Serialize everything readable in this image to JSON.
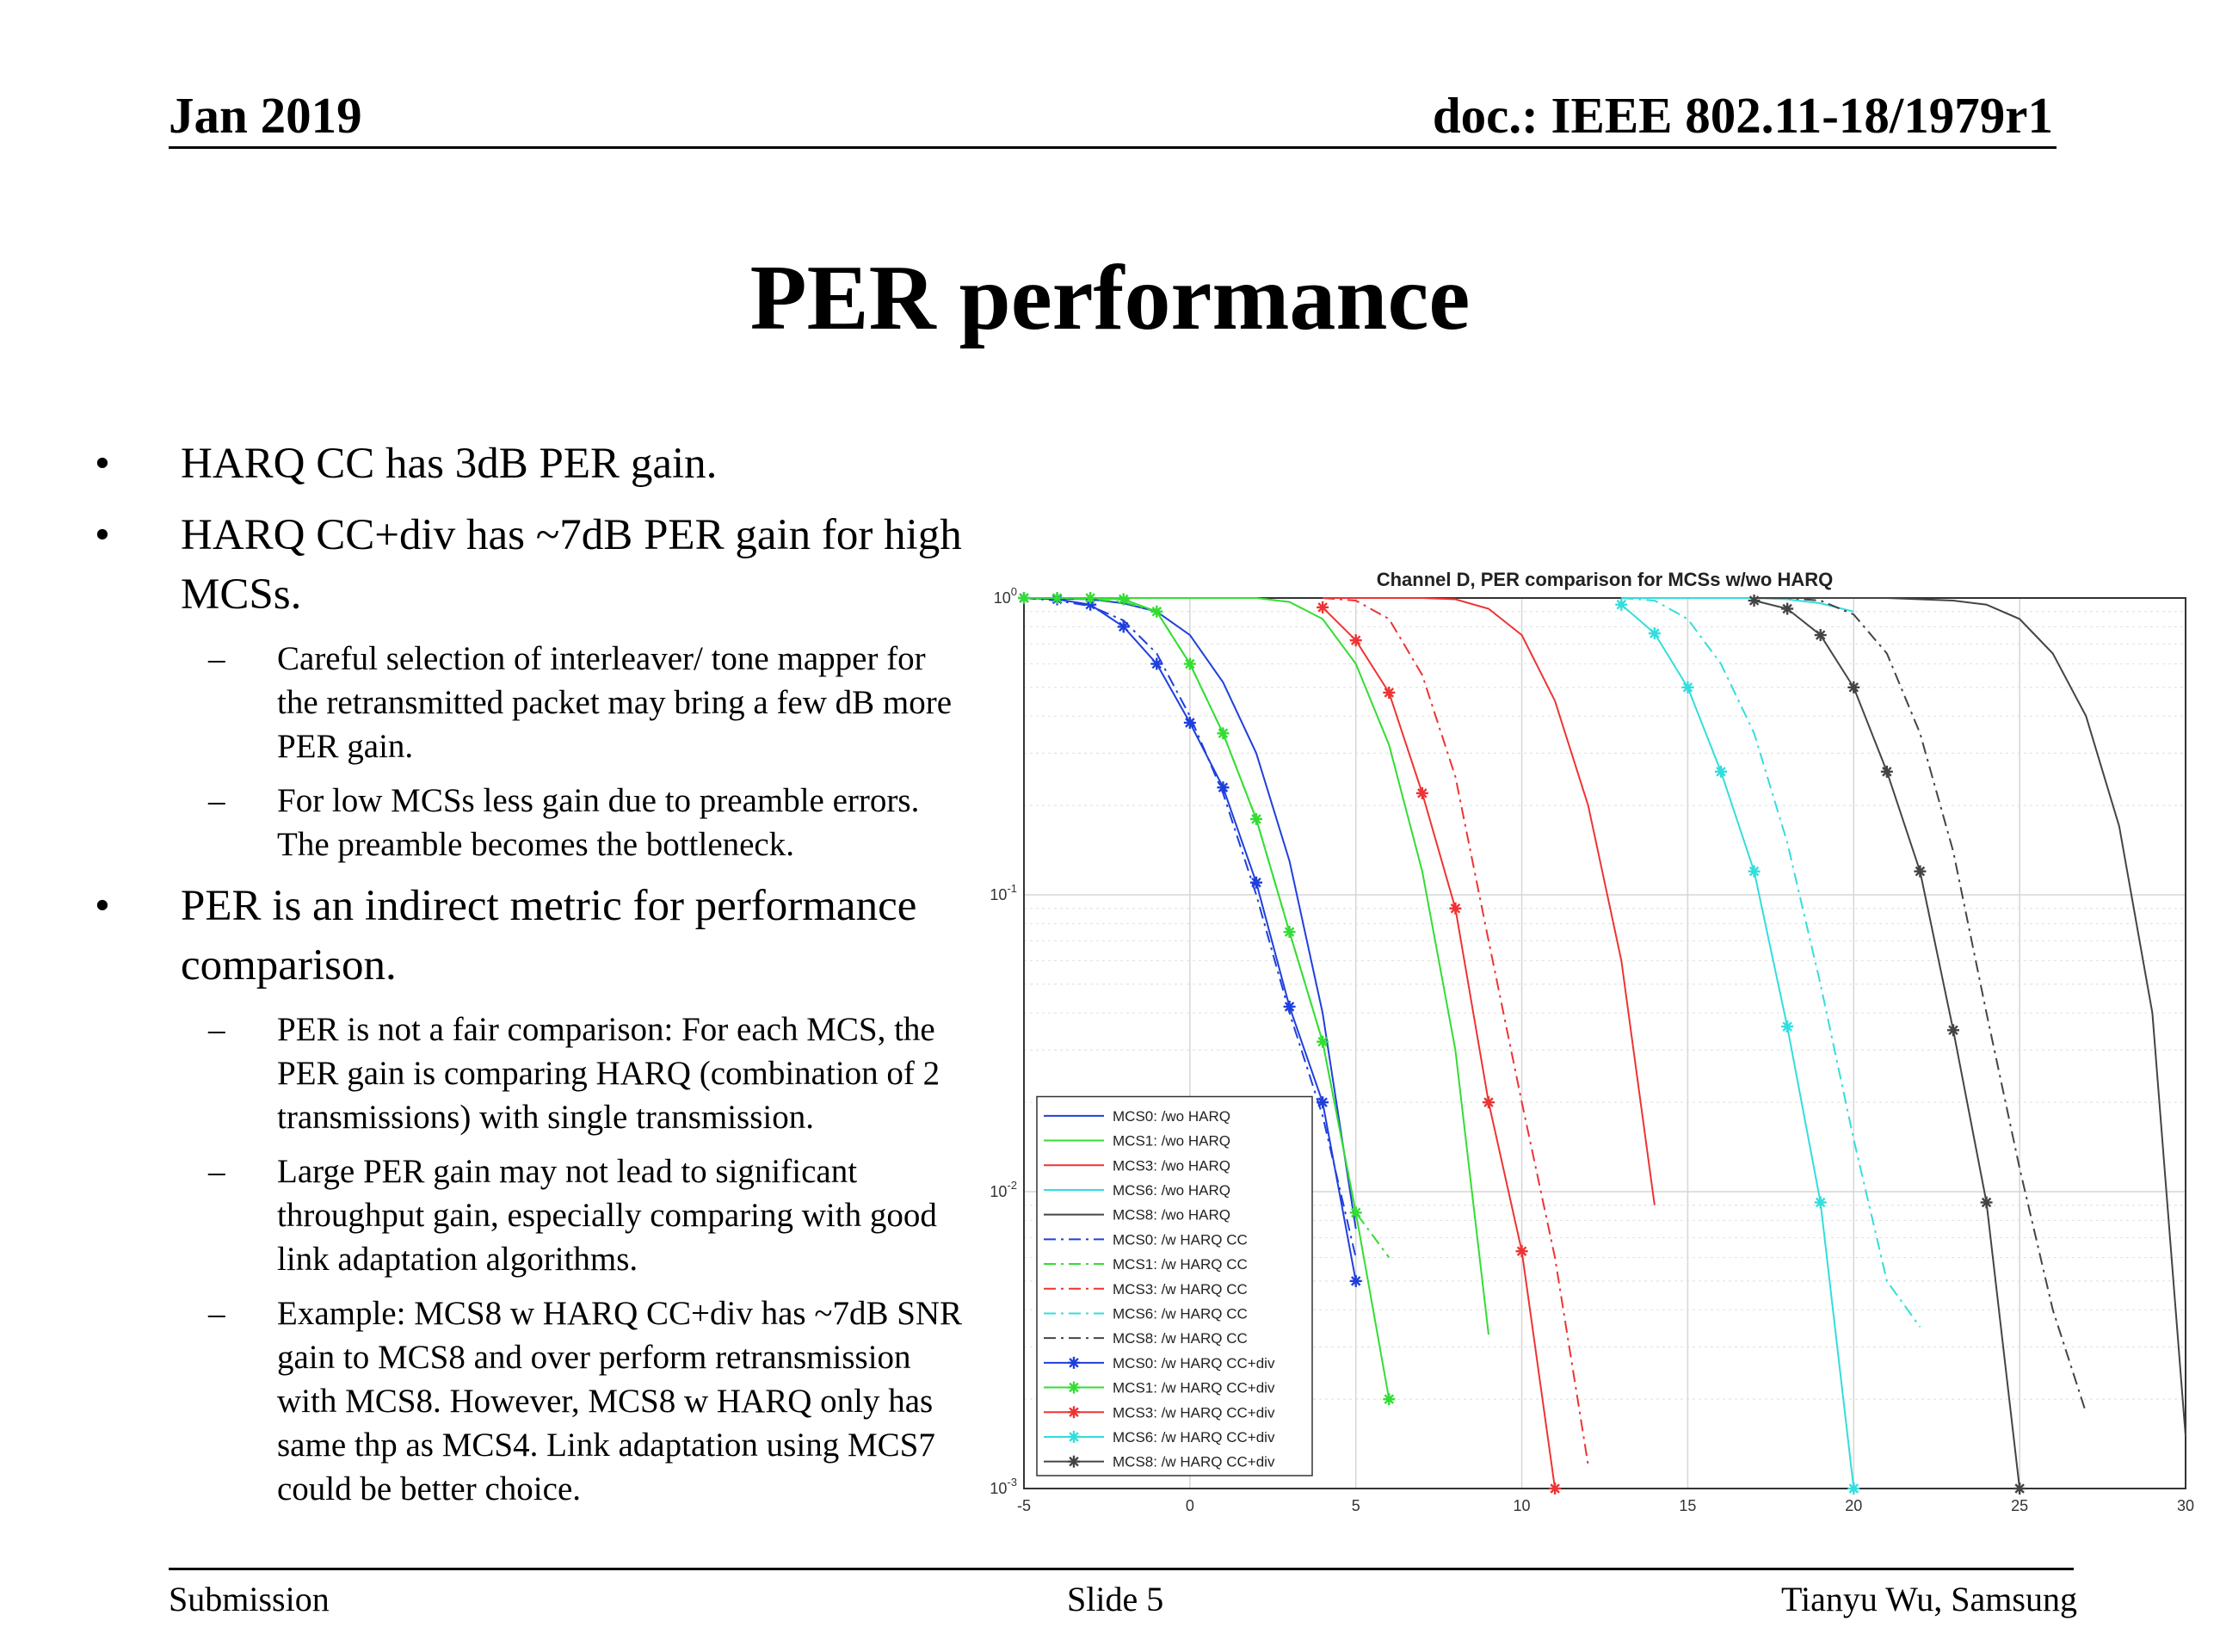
{
  "header": {
    "date": "Jan 2019",
    "doc": "doc.: IEEE 802.11-18/1979r1"
  },
  "title": "PER performance",
  "bullets": [
    {
      "level": 1,
      "text": "HARQ CC has 3dB PER gain."
    },
    {
      "level": 1,
      "text": "HARQ CC+div has ~7dB PER gain for high MCSs."
    },
    {
      "level": 2,
      "text": "Careful selection of interleaver/ tone mapper for the retransmitted packet may bring a few dB more PER gain."
    },
    {
      "level": 2,
      "text": "For low MCSs less gain due to preamble errors. The preamble becomes the bottleneck."
    },
    {
      "level": 1,
      "text": "PER is an indirect metric for performance comparison."
    },
    {
      "level": 2,
      "text": "PER is not a fair comparison: For each MCS, the PER gain is comparing HARQ (combination of 2 transmissions) with single transmission."
    },
    {
      "level": 2,
      "text": "Large PER gain may not lead to significant throughput gain, especially comparing with good link adaptation algorithms."
    },
    {
      "level": 2,
      "text": "Example: MCS8 w HARQ CC+div has ~7dB SNR gain to MCS8 and over perform retransmission with MCS8. However, MCS8 w HARQ only has same thp as MCS4. Link adaptation using MCS7 could be better choice."
    }
  ],
  "bullet_symbols": {
    "level1": "•",
    "level2": "–"
  },
  "footer": {
    "left": "Submission",
    "center": "Slide 5",
    "right": "Tianyu Wu, Samsung"
  },
  "chart_data": {
    "type": "line",
    "title": "Channel D, PER comparison for MCSs w/wo HARQ",
    "xlabel": "",
    "ylabel": "",
    "xlim": [
      -5,
      30
    ],
    "ylim": [
      0.001,
      1
    ],
    "yscale": "log",
    "xticks": [
      -5,
      0,
      5,
      10,
      15,
      20,
      25,
      30
    ],
    "ytick_labels": [
      {
        "value": 1,
        "base": "10",
        "exp": "0"
      },
      {
        "value": 0.1,
        "base": "10",
        "exp": "-1"
      },
      {
        "value": 0.01,
        "base": "10",
        "exp": "-2"
      },
      {
        "value": 0.001,
        "base": "10",
        "exp": "-3"
      }
    ],
    "grid": true,
    "legend_position": "bottom-left",
    "series": [
      {
        "name": "MCS0: /wo HARQ",
        "color": "#1f3fdd",
        "style": "solid",
        "marker": "none",
        "x": [
          -5,
          -3,
          -2,
          -1,
          0,
          1,
          2,
          3,
          4,
          5
        ],
        "y": [
          1,
          0.99,
          0.96,
          0.9,
          0.75,
          0.52,
          0.3,
          0.13,
          0.04,
          0.0075
        ]
      },
      {
        "name": "MCS1: /wo HARQ",
        "color": "#33dd33",
        "style": "solid",
        "marker": "none",
        "x": [
          -5,
          -1,
          0,
          1,
          2,
          3,
          4,
          5,
          6,
          7,
          8,
          9
        ],
        "y": [
          1,
          1,
          1,
          1,
          1,
          0.97,
          0.85,
          0.6,
          0.32,
          0.12,
          0.03,
          0.0033
        ]
      },
      {
        "name": "MCS3: /wo HARQ",
        "color": "#ee3333",
        "style": "solid",
        "marker": "none",
        "x": [
          4,
          7,
          8,
          9,
          10,
          11,
          12,
          13,
          14
        ],
        "y": [
          1,
          1,
          0.99,
          0.92,
          0.75,
          0.45,
          0.2,
          0.06,
          0.009
        ]
      },
      {
        "name": "MCS6: /wo HARQ",
        "color": "#33dddd",
        "style": "solid",
        "marker": "none",
        "x": [
          13,
          17,
          18,
          19,
          20
        ],
        "y": [
          1,
          1,
          0.99,
          0.96,
          0.9
        ]
      },
      {
        "name": "MCS8: /wo HARQ",
        "color": "#444444",
        "style": "solid",
        "marker": "none",
        "x": [
          17,
          21,
          22,
          23,
          24,
          25,
          26,
          27,
          28,
          29,
          30
        ],
        "y": [
          1,
          1,
          0.99,
          0.98,
          0.95,
          0.85,
          0.65,
          0.4,
          0.17,
          0.04,
          0.0015
        ]
      },
      {
        "name": "MCS0: /w HARQ CC",
        "color": "#1f3fdd",
        "style": "dashdot",
        "marker": "none",
        "x": [
          -5,
          -4,
          -3,
          -2,
          -1,
          0,
          1,
          2,
          3,
          4,
          5
        ],
        "y": [
          1,
          0.98,
          0.94,
          0.84,
          0.65,
          0.4,
          0.22,
          0.1,
          0.04,
          0.018,
          0.006
        ]
      },
      {
        "name": "MCS1: /w HARQ CC",
        "color": "#33dd33",
        "style": "dashdot",
        "marker": "none",
        "x": [
          -5,
          -4,
          -3,
          -2,
          -1,
          0,
          1,
          2,
          3,
          4,
          5,
          6
        ],
        "y": [
          1,
          1,
          0.99,
          0.97,
          0.9,
          0.6,
          0.35,
          0.18,
          0.075,
          0.032,
          0.0085,
          0.006
        ]
      },
      {
        "name": "MCS3: /w HARQ CC",
        "color": "#ee3333",
        "style": "dashdot",
        "marker": "none",
        "x": [
          4,
          5,
          6,
          7,
          8,
          9,
          10,
          11,
          12
        ],
        "y": [
          1,
          0.98,
          0.85,
          0.55,
          0.25,
          0.07,
          0.02,
          0.006,
          0.0012
        ]
      },
      {
        "name": "MCS6: /w HARQ CC",
        "color": "#33dddd",
        "style": "dashdot",
        "marker": "none",
        "x": [
          13,
          14,
          15,
          16,
          17,
          18,
          19,
          20,
          21,
          22
        ],
        "y": [
          1,
          0.98,
          0.85,
          0.6,
          0.35,
          0.15,
          0.05,
          0.015,
          0.005,
          0.0035
        ]
      },
      {
        "name": "MCS8: /w HARQ CC",
        "color": "#444444",
        "style": "dashdot",
        "marker": "none",
        "x": [
          17,
          18,
          19,
          20,
          21,
          22,
          23,
          24,
          25,
          26,
          27
        ],
        "y": [
          1,
          1,
          0.98,
          0.88,
          0.65,
          0.35,
          0.14,
          0.04,
          0.012,
          0.004,
          0.0018
        ]
      },
      {
        "name": "MCS0: /w HARQ CC+div",
        "color": "#1f3fdd",
        "style": "solid",
        "marker": "*",
        "x": [
          -5,
          -4,
          -3,
          -2,
          -1,
          0,
          1,
          2,
          3,
          4,
          5
        ],
        "y": [
          1,
          0.99,
          0.95,
          0.8,
          0.6,
          0.38,
          0.23,
          0.11,
          0.042,
          0.02,
          0.005
        ]
      },
      {
        "name": "MCS1: /w HARQ CC+div",
        "color": "#33dd33",
        "style": "solid",
        "marker": "*",
        "x": [
          -5,
          -4,
          -3,
          -2,
          -1,
          0,
          1,
          2,
          3,
          4,
          5,
          6
        ],
        "y": [
          1,
          1,
          1,
          0.99,
          0.9,
          0.6,
          0.35,
          0.18,
          0.075,
          0.032,
          0.0085,
          0.002
        ]
      },
      {
        "name": "MCS3: /w HARQ CC+div",
        "color": "#ee3333",
        "style": "solid",
        "marker": "*",
        "x": [
          4,
          5,
          6,
          7,
          8,
          9,
          10,
          11
        ],
        "y": [
          0.93,
          0.72,
          0.48,
          0.22,
          0.09,
          0.02,
          0.0063,
          0.001
        ]
      },
      {
        "name": "MCS6: /w HARQ CC+div",
        "color": "#33dddd",
        "style": "solid",
        "marker": "*",
        "x": [
          13,
          14,
          15,
          16,
          17,
          18,
          19,
          20
        ],
        "y": [
          0.95,
          0.76,
          0.5,
          0.26,
          0.12,
          0.036,
          0.0092,
          0.001
        ]
      },
      {
        "name": "MCS8: /w HARQ CC+div",
        "color": "#444444",
        "style": "solid",
        "marker": "*",
        "x": [
          17,
          18,
          19,
          20,
          21,
          22,
          23,
          24,
          25
        ],
        "y": [
          0.98,
          0.92,
          0.75,
          0.5,
          0.26,
          0.12,
          0.035,
          0.0092,
          0.001
        ]
      }
    ]
  }
}
